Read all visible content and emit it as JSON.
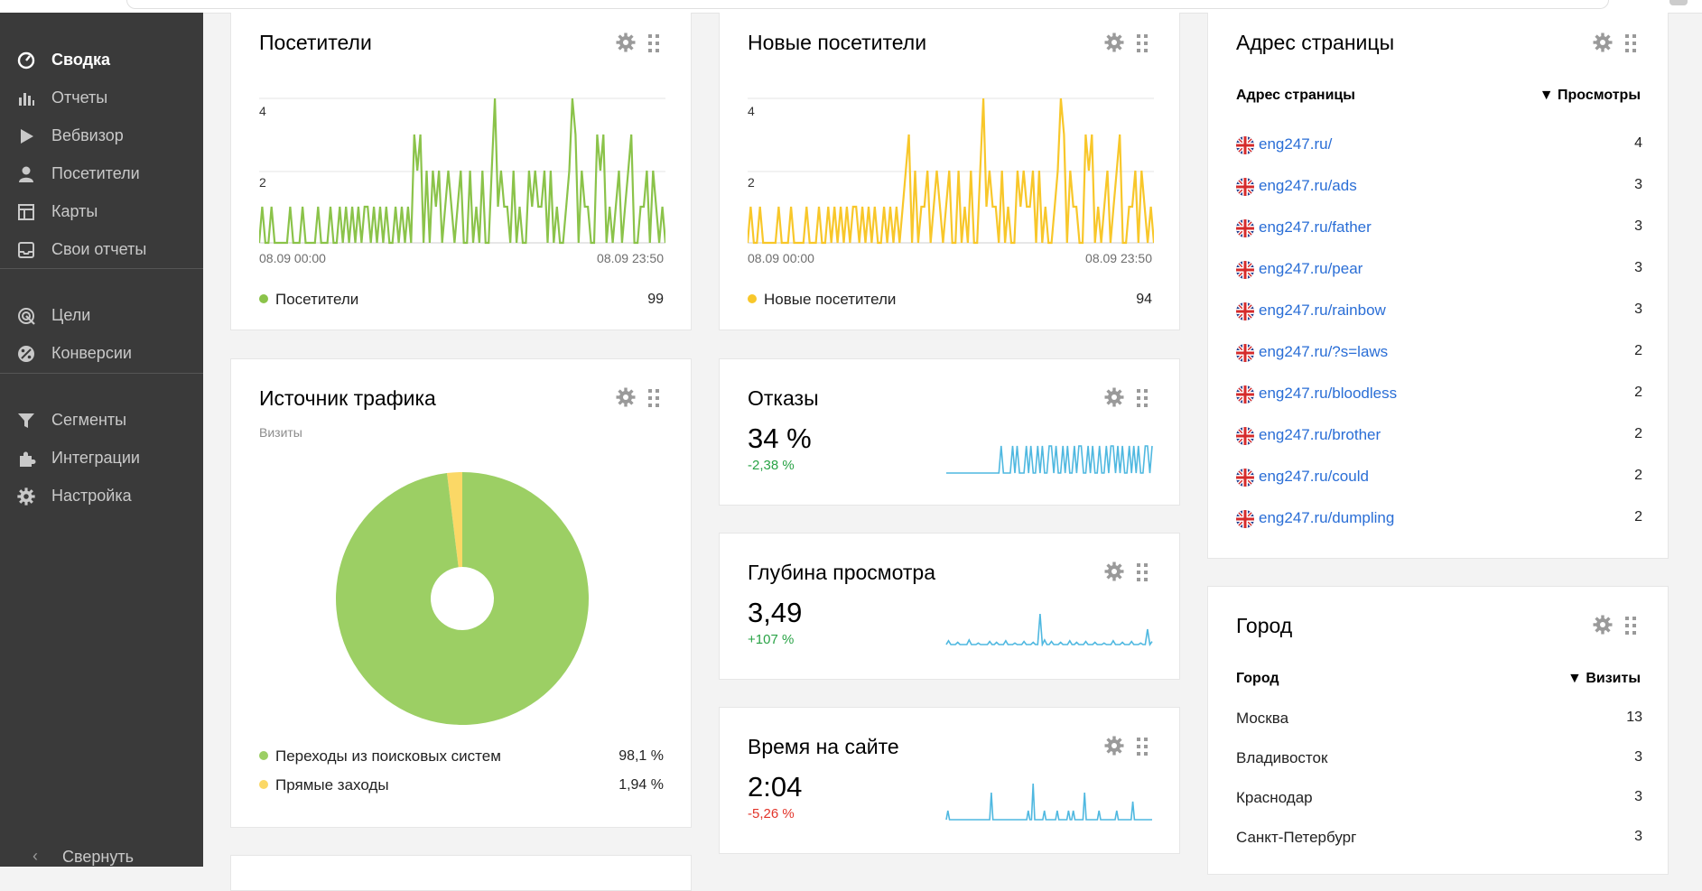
{
  "sidebar": {
    "items": [
      {
        "label": "Сводка",
        "icon": "gauge-icon"
      },
      {
        "label": "Отчеты",
        "icon": "bar-chart-icon"
      },
      {
        "label": "Вебвизор",
        "icon": "play-icon"
      },
      {
        "label": "Посетители",
        "icon": "user-icon"
      },
      {
        "label": "Карты",
        "icon": "map-layout-icon"
      },
      {
        "label": "Свои отчеты",
        "icon": "inbox-icon"
      },
      {
        "label": "Цели",
        "icon": "target-icon"
      },
      {
        "label": "Конверсии",
        "icon": "percent-icon"
      },
      {
        "label": "Сегменты",
        "icon": "filter-icon"
      },
      {
        "label": "Интеграции",
        "icon": "puzzle-icon"
      },
      {
        "label": "Настройка",
        "icon": "gear-icon"
      }
    ],
    "collapse_label": "Свернуть",
    "collapse_icon": "chevron-left-icon"
  },
  "visitors": {
    "title": "Посетители",
    "y_tick_4": "4",
    "y_tick_2": "2",
    "x_start": "08.09 00:00",
    "x_end": "08.09 23:50",
    "legend_label": "Посетители",
    "legend_value": "99",
    "color": "#8bc34a"
  },
  "new_visitors": {
    "title": "Новые посетители",
    "y_tick_4": "4",
    "y_tick_2": "2",
    "x_start": "08.09 00:00",
    "x_end": "08.09 23:50",
    "legend_label": "Новые посетители",
    "legend_value": "94",
    "color": "#f8c72a"
  },
  "traffic": {
    "title": "Источник трафика",
    "subtitle": "Визиты",
    "legend": [
      {
        "label": "Переходы из поисковых систем",
        "value": "98,1 %",
        "color": "#9ccf64"
      },
      {
        "label": "Прямые заходы",
        "value": "1,94 %",
        "color": "#fbd866"
      }
    ]
  },
  "bounce": {
    "title": "Отказы",
    "value": "34 %",
    "delta": "-2,38 %"
  },
  "depth": {
    "title": "Глубина просмотра",
    "value": "3,49",
    "delta": "+107 %"
  },
  "time": {
    "title": "Время на сайте",
    "value": "2:04",
    "delta": "-5,26 %"
  },
  "pages": {
    "title": "Адрес страницы",
    "col_name": "Адрес страницы",
    "col_metric": "▼ Просмотры",
    "rows": [
      {
        "url": "eng247.ru/",
        "views": "4"
      },
      {
        "url": "eng247.ru/ads",
        "views": "3"
      },
      {
        "url": "eng247.ru/father",
        "views": "3"
      },
      {
        "url": "eng247.ru/pear",
        "views": "3"
      },
      {
        "url": "eng247.ru/rainbow",
        "views": "3"
      },
      {
        "url": "eng247.ru/?s=laws",
        "views": "2"
      },
      {
        "url": "eng247.ru/bloodless",
        "views": "2"
      },
      {
        "url": "eng247.ru/brother",
        "views": "2"
      },
      {
        "url": "eng247.ru/could",
        "views": "2"
      },
      {
        "url": "eng247.ru/dumpling",
        "views": "2"
      }
    ]
  },
  "cities": {
    "title": "Город",
    "col_name": "Город",
    "col_metric": "▼ Визиты",
    "rows": [
      {
        "name": "Москва",
        "visits": "13"
      },
      {
        "name": "Владивосток",
        "visits": "3"
      },
      {
        "name": "Краснодар",
        "visits": "3"
      },
      {
        "name": "Санкт-Петербург",
        "visits": "3"
      }
    ]
  },
  "chart_data": [
    {
      "type": "line",
      "title": "Посетители",
      "x_labels": [
        "08.09 00:00",
        "08.09 23:50"
      ],
      "ylim": [
        0,
        4
      ],
      "yticks": [
        2,
        4
      ],
      "series": [
        {
          "name": "Посетители",
          "color": "#8bc34a",
          "values": [
            0,
            1,
            0,
            0,
            1,
            0,
            0,
            0,
            0,
            0,
            1,
            0,
            0,
            0,
            1,
            0,
            0,
            0,
            0,
            1,
            0,
            0,
            0,
            1,
            0,
            0,
            1,
            0,
            1,
            0,
            1,
            0,
            1,
            0,
            1,
            1,
            0,
            1,
            0,
            1,
            0,
            1,
            0,
            0,
            1,
            0,
            1,
            0,
            1,
            0,
            3,
            2,
            3,
            0,
            2,
            0,
            2,
            1,
            2,
            0,
            1,
            2,
            1,
            0,
            1,
            2,
            0,
            0,
            2,
            0,
            1,
            0,
            2,
            0,
            0,
            2,
            4,
            1,
            2,
            1,
            1,
            0,
            2,
            0,
            1,
            0,
            0,
            2,
            1,
            2,
            1,
            1,
            2,
            0,
            2,
            0,
            1,
            0,
            0,
            1,
            2,
            4,
            3,
            0,
            2,
            1,
            1,
            0,
            0,
            3,
            2,
            3,
            0,
            1,
            0,
            1,
            2,
            0,
            1,
            2,
            3,
            0,
            0,
            1,
            1,
            2,
            0,
            2,
            1,
            0,
            1,
            0
          ]
        }
      ]
    },
    {
      "type": "line",
      "title": "Новые посетители",
      "x_labels": [
        "08.09 00:00",
        "08.09 23:50"
      ],
      "ylim": [
        0,
        4
      ],
      "yticks": [
        2,
        4
      ],
      "series": [
        {
          "name": "Новые посетители",
          "color": "#f8c72a",
          "values": [
            0,
            1,
            0,
            0,
            1,
            0,
            0,
            0,
            0,
            0,
            1,
            0,
            0,
            0,
            1,
            0,
            0,
            0,
            0,
            1,
            0,
            0,
            0,
            1,
            0,
            0,
            1,
            0,
            1,
            0,
            1,
            0,
            1,
            0,
            1,
            1,
            0,
            1,
            0,
            1,
            0,
            1,
            0,
            0,
            1,
            0,
            1,
            0,
            1,
            0,
            1,
            2,
            3,
            0,
            2,
            0,
            1,
            1,
            2,
            0,
            1,
            2,
            1,
            0,
            1,
            2,
            0,
            0,
            2,
            0,
            1,
            0,
            2,
            0,
            0,
            2,
            4,
            1,
            2,
            1,
            1,
            0,
            2,
            0,
            1,
            0,
            0,
            2,
            1,
            2,
            1,
            1,
            2,
            0,
            2,
            0,
            1,
            0,
            0,
            1,
            2,
            4,
            3,
            0,
            2,
            1,
            1,
            0,
            0,
            3,
            2,
            3,
            0,
            1,
            0,
            1,
            2,
            0,
            1,
            2,
            3,
            0,
            0,
            1,
            1,
            2,
            0,
            2,
            1,
            0,
            1,
            0
          ]
        }
      ]
    },
    {
      "type": "pie",
      "title": "Источник трафика",
      "subtitle": "Визиты",
      "labels": [
        "Переходы из поисковых систем",
        "Прямые заходы"
      ],
      "values": [
        98.1,
        1.94
      ],
      "colors": [
        "#9ccf64",
        "#fbd866"
      ]
    },
    {
      "type": "area",
      "title": "Отказы",
      "color": "#4fb8e0",
      "values": [
        0,
        0,
        0,
        0,
        0,
        0,
        0,
        0,
        0,
        0,
        0,
        0,
        0,
        0,
        0,
        0,
        0,
        0,
        0,
        0,
        0,
        0,
        0,
        0,
        1,
        0,
        0,
        0,
        0,
        1,
        0,
        1,
        0,
        0,
        0,
        1,
        0,
        1,
        0,
        0,
        1,
        0,
        1,
        0,
        0,
        1,
        1,
        0,
        1,
        0,
        0,
        1,
        0,
        1,
        0,
        0,
        1,
        0,
        1,
        1,
        0,
        0,
        1,
        0,
        1,
        0,
        0,
        1,
        0,
        0,
        1,
        0,
        1,
        1,
        0,
        1,
        0,
        1,
        0,
        0,
        1,
        0,
        1,
        0,
        1,
        0,
        0,
        1,
        1,
        0,
        1
      ]
    },
    {
      "type": "area",
      "title": "Глубина просмотра",
      "color": "#4fb8e0",
      "values": [
        0,
        0.5,
        0,
        0,
        0,
        0.3,
        0,
        0,
        0,
        0,
        0.6,
        0,
        0,
        0,
        0.2,
        0,
        0,
        0,
        0,
        0.4,
        0,
        0,
        0.3,
        0,
        0,
        0,
        0.5,
        0,
        0,
        0,
        0.2,
        0,
        0,
        0,
        0.4,
        0,
        0,
        0,
        0.3,
        0,
        0,
        4,
        0,
        0.6,
        0,
        0,
        0.4,
        0,
        0,
        0,
        0.3,
        0,
        0,
        0,
        0.5,
        0,
        0,
        0.3,
        0,
        0,
        0,
        0.4,
        0,
        0,
        0,
        0.3,
        0,
        0,
        0,
        0.2,
        0,
        0,
        0,
        0.5,
        0,
        0,
        0,
        0.3,
        0,
        0,
        0,
        0.4,
        0,
        0,
        0,
        0.2,
        0,
        0,
        2,
        0,
        0.4
      ]
    },
    {
      "type": "area",
      "title": "Время на сайте",
      "color": "#4fb8e0",
      "values": [
        0,
        1,
        0,
        0,
        0,
        0,
        0,
        0,
        0,
        0,
        0,
        0,
        0,
        0,
        0,
        0,
        0,
        0,
        0,
        0,
        0,
        0,
        0,
        0,
        0,
        0,
        0,
        0,
        3,
        0,
        0,
        0,
        0,
        0,
        0,
        0,
        0,
        0,
        0,
        0,
        0,
        0,
        0,
        0,
        0,
        0,
        0,
        0,
        0,
        0,
        0,
        1,
        0,
        0,
        4,
        0,
        0,
        0,
        0,
        0,
        0,
        1,
        0,
        0,
        0,
        0,
        0,
        0,
        0,
        1,
        0,
        0,
        0,
        0,
        0,
        0,
        1,
        0,
        0,
        1,
        0,
        0,
        0,
        0,
        0,
        0,
        3,
        0,
        0,
        0,
        0,
        0,
        0,
        0,
        0,
        1,
        0,
        0,
        0,
        0,
        0,
        0,
        0,
        0,
        0,
        0,
        1,
        0,
        0,
        0,
        0,
        0,
        0,
        0,
        0,
        0,
        2,
        0,
        0,
        0,
        0,
        0,
        0,
        0,
        0,
        0,
        0,
        0,
        0
      ]
    }
  ]
}
